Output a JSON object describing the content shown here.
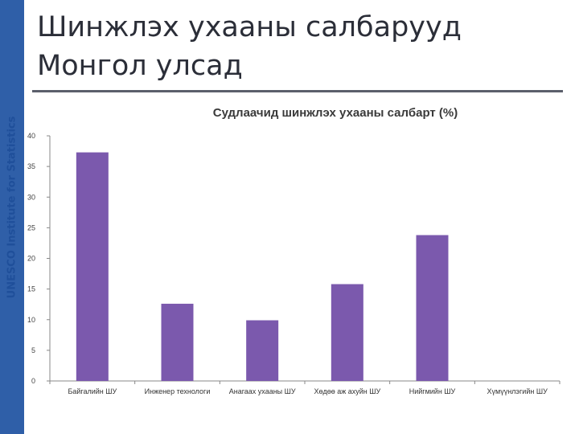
{
  "slide": {
    "title_line1": "Шинжлэх ухааны салбарууд",
    "title_line2": "Монгол улсад",
    "side_label": "UNESCO Institute for Statistics"
  },
  "colors": {
    "side_band": "#2f5fa8",
    "bar": "#7b59ad",
    "axis": "#888888",
    "rule": "#5b5f6b"
  },
  "chart_data": {
    "type": "bar",
    "title": "Судлаачид шинжлэх ухааны салбарт (%)",
    "categories": [
      "Байгалийн ШУ",
      "Инженер технологи",
      "Анагаах ухааны ШУ",
      "Хөдөө аж ахуйн ШУ",
      "Нийгмийн ШУ",
      "Хүмүүнлэгийн ШУ"
    ],
    "values": [
      37.3,
      12.6,
      9.9,
      15.8,
      23.8,
      0
    ],
    "ylim": [
      0,
      40
    ],
    "yticks": [
      0,
      5,
      10,
      15,
      20,
      25,
      30,
      35,
      40
    ],
    "grid": false,
    "legend": "none"
  }
}
